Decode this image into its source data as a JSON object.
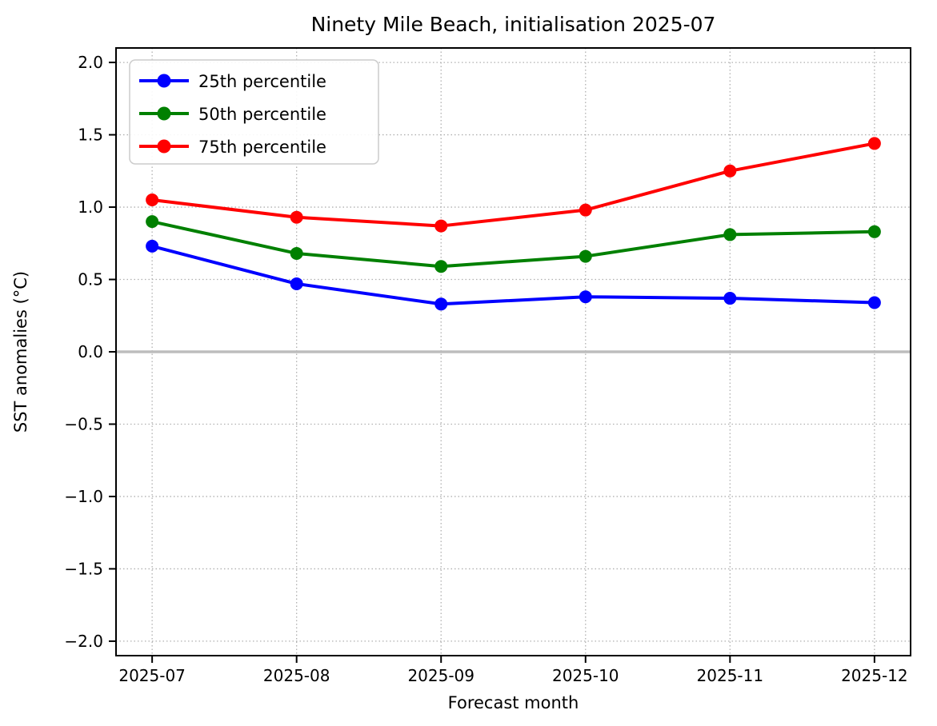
{
  "figure": {
    "background": "#ffffff",
    "colors": {
      "axis": "#000000",
      "grid": "#b0b0b0",
      "zero_line": "#bdbdbd",
      "legend_border": "#cccccc",
      "legend_background": "#ffffff"
    }
  },
  "chart_data": {
    "type": "line",
    "title": "Ninety Mile Beach, initialisation 2025-07",
    "xlabel": "Forecast month",
    "ylabel": "SST anomalies (°C)",
    "categories": [
      "2025-07",
      "2025-08",
      "2025-09",
      "2025-10",
      "2025-11",
      "2025-12"
    ],
    "series": [
      {
        "name": "25th percentile",
        "color": "#0000ff",
        "values": [
          0.73,
          0.47,
          0.33,
          0.38,
          0.37,
          0.34
        ]
      },
      {
        "name": "50th percentile",
        "color": "#008000",
        "values": [
          0.9,
          0.68,
          0.59,
          0.66,
          0.81,
          0.83
        ]
      },
      {
        "name": "75th percentile",
        "color": "#ff0000",
        "values": [
          1.05,
          0.93,
          0.87,
          0.98,
          1.25,
          1.44
        ]
      }
    ],
    "ylim": [
      -2.1,
      2.1
    ],
    "x_margin": 0.25,
    "yticks": [
      {
        "value": -2.0,
        "label": "−2.0"
      },
      {
        "value": -1.5,
        "label": "−1.5"
      },
      {
        "value": -1.0,
        "label": "−1.0"
      },
      {
        "value": -0.5,
        "label": "−0.5"
      },
      {
        "value": 0.0,
        "label": "0.0"
      },
      {
        "value": 0.5,
        "label": "0.5"
      },
      {
        "value": 1.0,
        "label": "1.0"
      },
      {
        "value": 1.5,
        "label": "1.5"
      },
      {
        "value": 2.0,
        "label": "2.0"
      }
    ],
    "grid": true,
    "grid_style": "dotted",
    "zero_line": true,
    "marker": "o",
    "legend_position": "upper left"
  }
}
